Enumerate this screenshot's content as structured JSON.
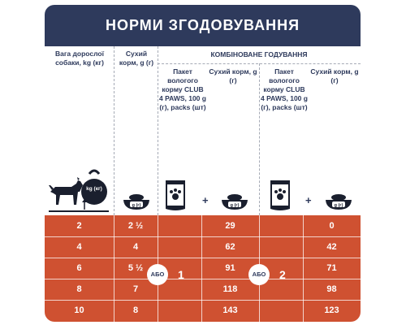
{
  "title": "НОРМИ ЗГОДОВУВАННЯ",
  "headers": {
    "weight": "Вага дорослої собаки, kg (кг)",
    "dry": "Сухий корм, g (г)",
    "combined": "КОМБІНОВАНЕ ГОДУВАННЯ",
    "wet_pack_1": "Пакет вологого корму CLUB 4 PAWS, 100 g (г), packs (шт)",
    "dry_1": "Сухий корм, g (г)",
    "wet_pack_2": "Пакет вологого корму CLUB 4 PAWS, 100 g (г), packs (шт)",
    "dry_2": "Сухий корм, g (г)"
  },
  "icons": {
    "kettlebell_label": "kg (кг)",
    "bowl_label": "g (г)",
    "plus": "+"
  },
  "combo": {
    "or_label": "АБО",
    "pack_count_1": "1",
    "pack_count_2": "2"
  },
  "rows": [
    {
      "weight": "2",
      "dry": "2 ½",
      "combo1_dry": "29",
      "combo2_dry": "0"
    },
    {
      "weight": "4",
      "dry": "4",
      "combo1_dry": "62",
      "combo2_dry": "42"
    },
    {
      "weight": "6",
      "dry": "5 ½",
      "combo1_dry": "91",
      "combo2_dry": "71"
    },
    {
      "weight": "8",
      "dry": "7",
      "combo1_dry": "118",
      "combo2_dry": "98"
    },
    {
      "weight": "10",
      "dry": "8",
      "combo1_dry": "143",
      "combo2_dry": "123"
    }
  ],
  "colors": {
    "header_bg": "#2e3a5c",
    "data_bg": "#cf5131",
    "text_dark": "#2e3a5c"
  }
}
